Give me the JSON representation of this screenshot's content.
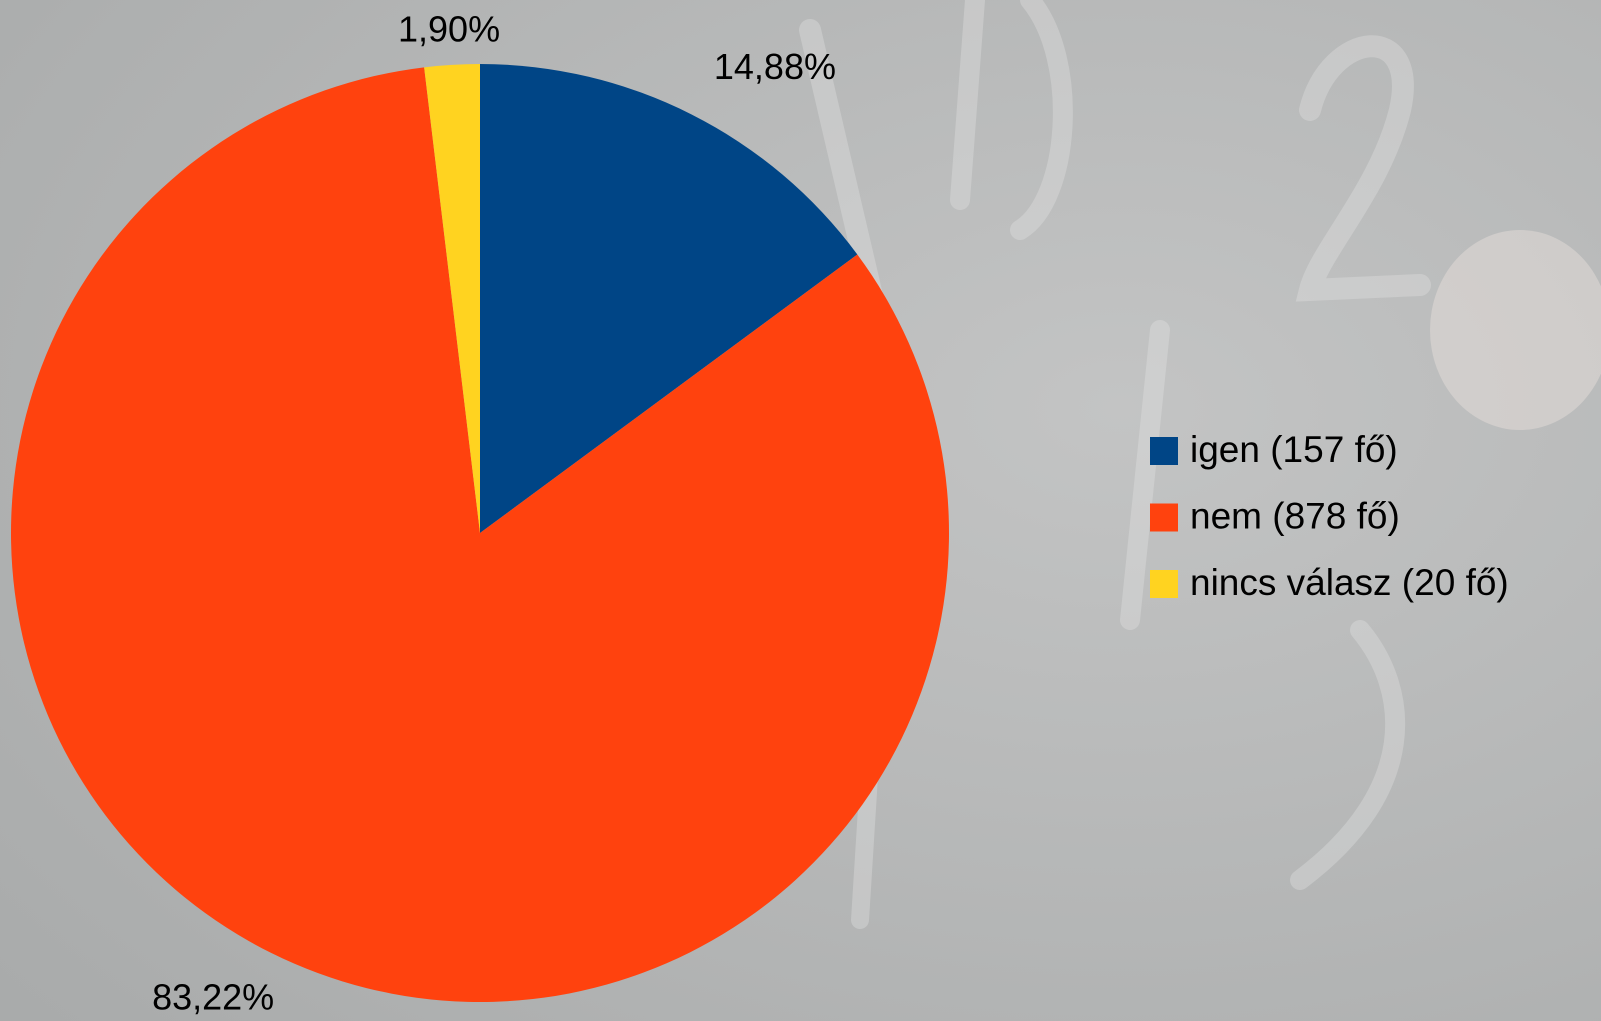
{
  "chart_data": {
    "type": "pie",
    "categories": [
      "igen (157 fő)",
      "nem (878 fő)",
      "nincs válasz (20 fő)"
    ],
    "values": [
      14.88,
      83.22,
      1.9
    ],
    "value_labels": [
      "14,88%",
      "83,22%",
      "1,90%"
    ],
    "colors": [
      "#004586",
      "#ff420e",
      "#ffd320"
    ],
    "legend": "right"
  }
}
